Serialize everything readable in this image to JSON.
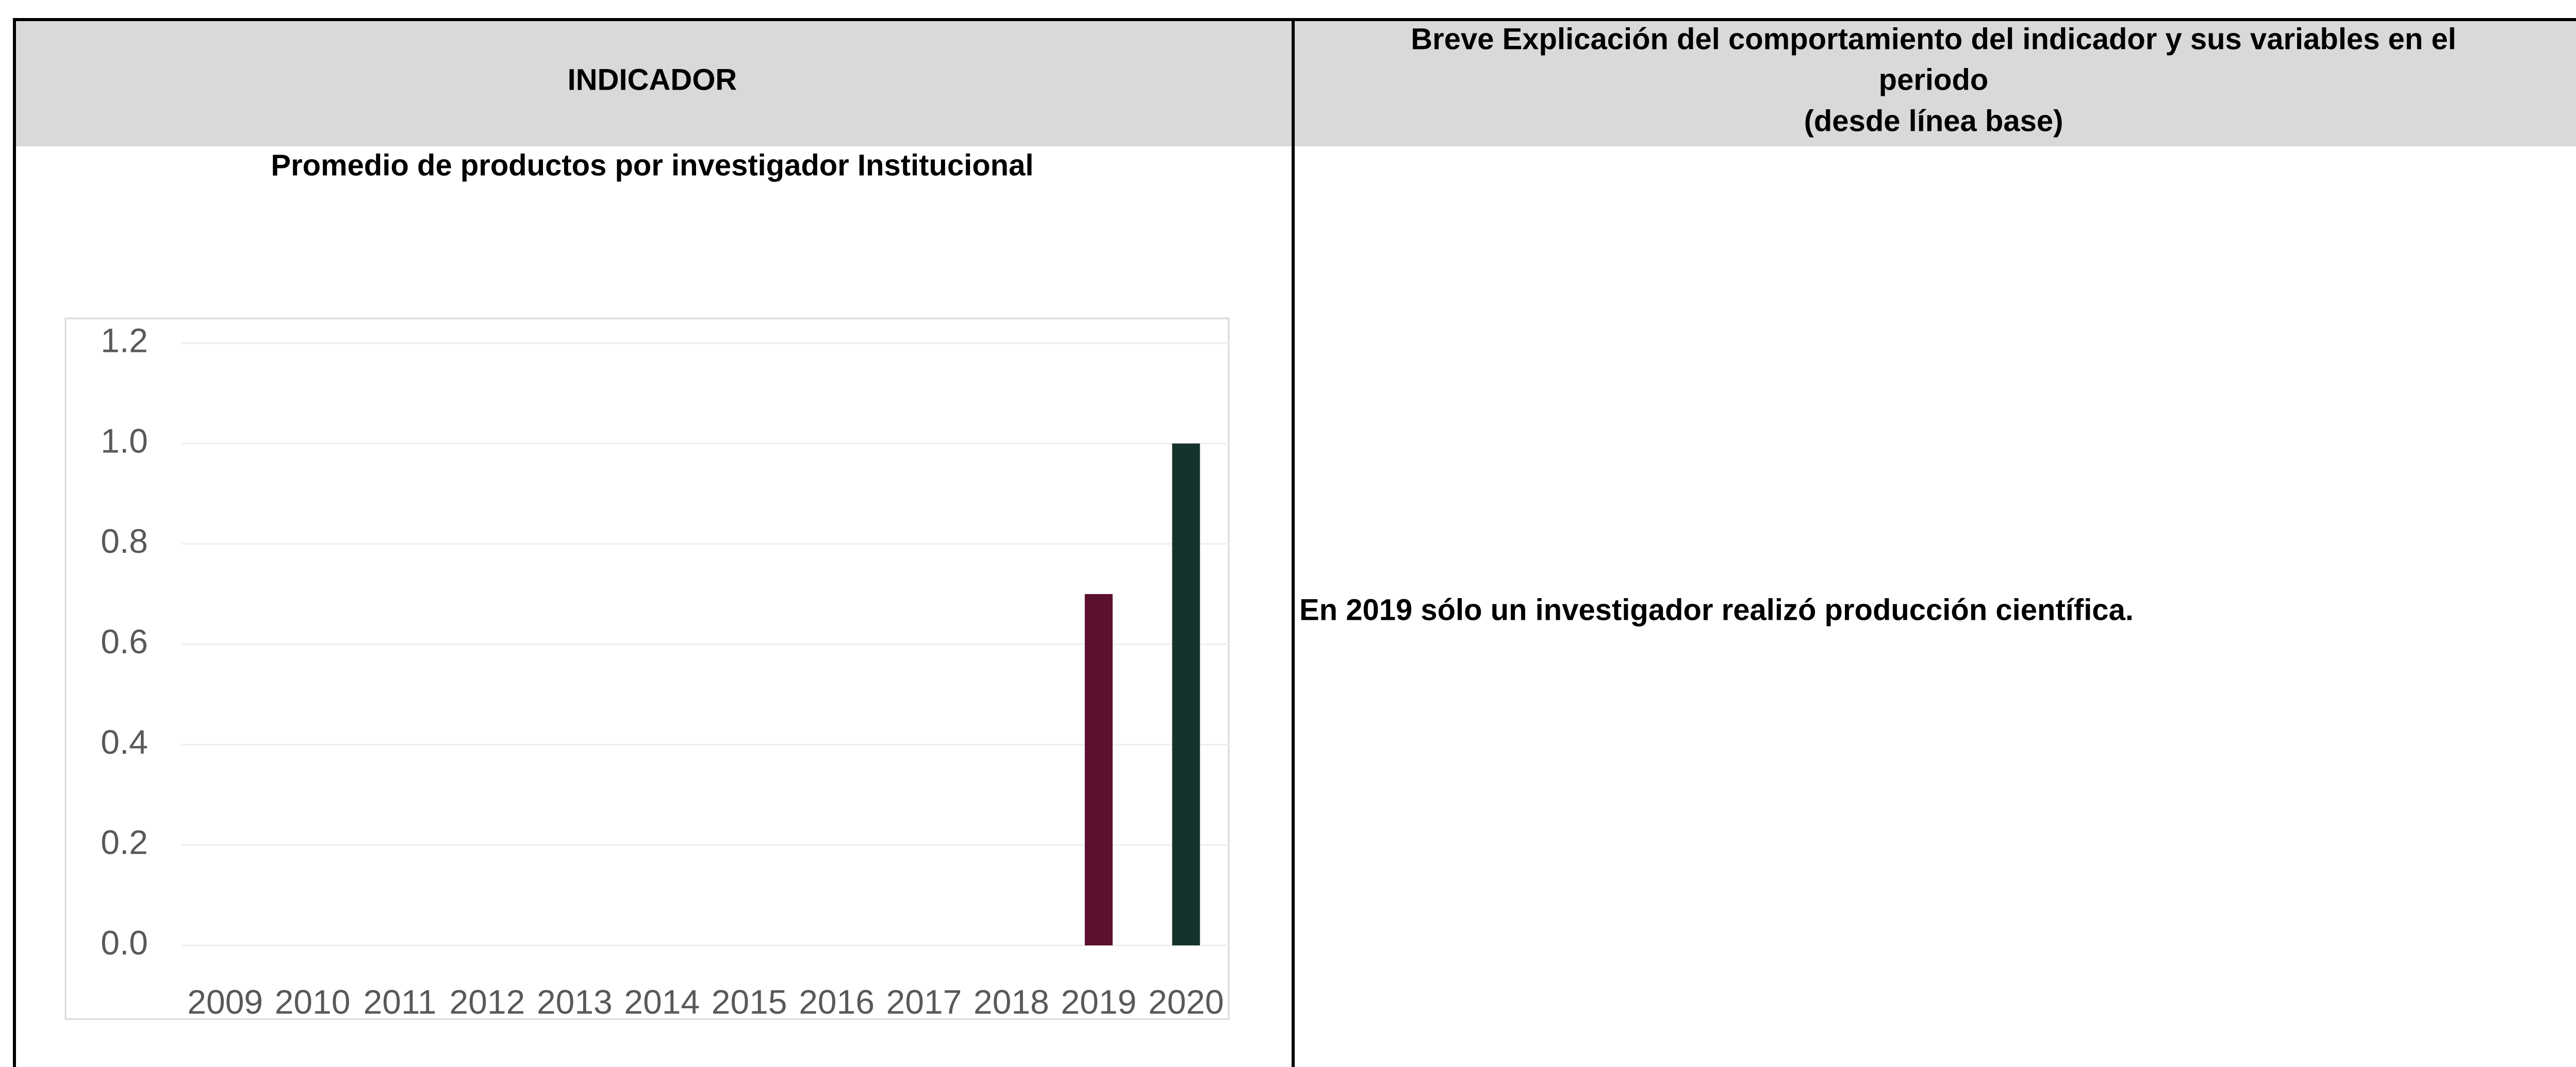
{
  "table": {
    "header_left": "INDICADOR",
    "header_right": [
      "Breve Explicación del comportamiento del indicador y sus variables en el",
      "periodo",
      "(desde línea base)"
    ],
    "cell_right": "En 2019 sólo un investigador realizó producción científica."
  },
  "chart_data": {
    "type": "bar",
    "title": "Promedio de productos por investigador Institucional",
    "categories": [
      "2009",
      "2010",
      "2011",
      "2012",
      "2013",
      "2014",
      "2015",
      "2016",
      "2017",
      "2018",
      "2019",
      "2020"
    ],
    "values": [
      null,
      null,
      null,
      null,
      null,
      null,
      null,
      null,
      null,
      null,
      0.7,
      1
    ],
    "colors": [
      null,
      null,
      null,
      null,
      null,
      null,
      null,
      null,
      null,
      null,
      "#5c0f2e",
      "#15332c"
    ],
    "ylim": [
      0,
      1.2
    ],
    "yticks": [
      {
        "value": 0,
        "label": "0.0"
      },
      0.2,
      0.4,
      0.6,
      0.8,
      {
        "value": 1,
        "label": "1.0"
      },
      1.2
    ],
    "grid": true
  }
}
